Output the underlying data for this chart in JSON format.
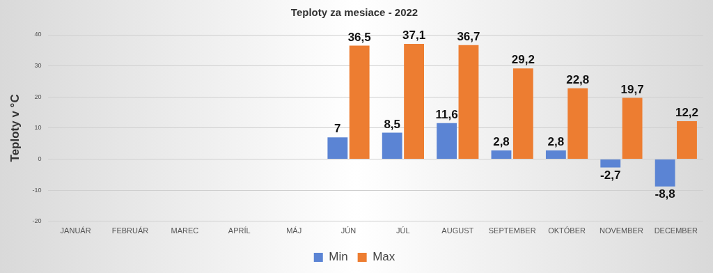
{
  "chart_data": {
    "type": "bar",
    "title": "Teploty za mesiace - 2022",
    "ylabel": "Teploty v °C",
    "categories": [
      "JANUÁR",
      "FEBRUÁR",
      "MAREC",
      "APRÍL",
      "MÁJ",
      "JÚN",
      "JÚL",
      "AUGUST",
      "SEPTEMBER",
      "OKTÓBER",
      "NOVEMBER",
      "DECEMBER"
    ],
    "series": [
      {
        "name": "Min",
        "color": "#5b84d4",
        "values": [
          null,
          null,
          null,
          null,
          null,
          7,
          8.5,
          11.6,
          2.8,
          2.8,
          -2.7,
          -8.8
        ],
        "value_labels": [
          null,
          null,
          null,
          null,
          null,
          "7",
          "8,5",
          "11,6",
          "2,8",
          "2,8",
          "-2,7",
          "-8,8"
        ]
      },
      {
        "name": "Max",
        "color": "#ed7d31",
        "values": [
          null,
          null,
          null,
          null,
          null,
          36.5,
          37.1,
          36.7,
          29.2,
          22.8,
          19.7,
          12.2
        ],
        "value_labels": [
          null,
          null,
          null,
          null,
          null,
          "36,5",
          "37,1",
          "36,7",
          "29,2",
          "22,8",
          "19,7",
          "12,2"
        ]
      }
    ],
    "ylim": [
      -20,
      40
    ],
    "yticks": [
      -20,
      -10,
      0,
      10,
      20,
      30,
      40
    ],
    "grid": "y",
    "legend": "bottom"
  }
}
